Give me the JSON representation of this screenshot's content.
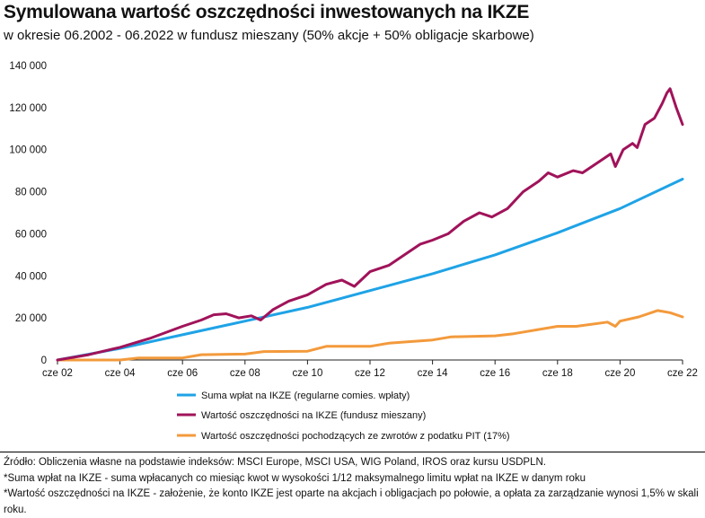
{
  "title": "Symulowana wartość oszczędności inwestowanych na IKZE",
  "subtitle": "w okresie 06.2002 - 06.2022 w fundusz mieszany (50% akcje + 50% obligacje skarbowe)",
  "colors": {
    "blue": "#1fa3e6",
    "purple": "#a0135a",
    "orange": "#f39a3c"
  },
  "chart_data": {
    "type": "line",
    "title": "Symulowana wartość oszczędności inwestowanych na IKZE",
    "ylim": [
      0,
      140000
    ],
    "xlim": [
      2002.4,
      2022.4
    ],
    "ytick_values": [
      0,
      20000,
      40000,
      60000,
      80000,
      100000,
      120000,
      140000
    ],
    "ytick_labels": [
      "0",
      "20 000",
      "40 000",
      "60 000",
      "80 000",
      "100 000",
      "120 000",
      "140 000"
    ],
    "xtick_values": [
      2002.4,
      2004.4,
      2006.4,
      2008.4,
      2010.4,
      2012.4,
      2014.4,
      2016.4,
      2018.4,
      2020.4,
      2022.4
    ],
    "xtick_labels": [
      "cze 02",
      "cze 04",
      "cze 06",
      "cze 08",
      "cze 10",
      "cze 12",
      "cze 14",
      "cze 16",
      "cze 18",
      "cze 20",
      "cze 22"
    ],
    "series": [
      {
        "name": "Suma wpłat na  IKZE (regularne comies. wpłaty)",
        "color": "#1fa3e6",
        "x": [
          2002.4,
          2004.4,
          2006.4,
          2008.4,
          2010.4,
          2012.4,
          2014.4,
          2016.4,
          2018.4,
          2020.4,
          2022.4
        ],
        "y": [
          0,
          5500,
          12000,
          18500,
          25000,
          33000,
          41000,
          50000,
          60500,
          72000,
          86000
        ]
      },
      {
        "name": "Wartość oszczędności na IKZE (fundusz mieszany)",
        "color": "#a0135a",
        "x": [
          2002.4,
          2003.4,
          2004.4,
          2005.4,
          2006.4,
          2007.0,
          2007.4,
          2007.8,
          2008.2,
          2008.6,
          2008.9,
          2009.3,
          2009.8,
          2010.4,
          2011.0,
          2011.5,
          2011.9,
          2012.4,
          2013.0,
          2013.5,
          2014.0,
          2014.4,
          2014.9,
          2015.4,
          2015.9,
          2016.3,
          2016.8,
          2017.3,
          2017.8,
          2018.1,
          2018.4,
          2018.9,
          2019.2,
          2019.6,
          2019.9,
          2020.1,
          2020.25,
          2020.5,
          2020.8,
          2020.95,
          2021.2,
          2021.5,
          2021.75,
          2021.9,
          2022.0,
          2022.2,
          2022.4
        ],
        "y": [
          0,
          2500,
          6000,
          10500,
          16000,
          19000,
          21500,
          22000,
          20000,
          21000,
          19000,
          24000,
          28000,
          31000,
          36000,
          38000,
          35000,
          42000,
          45000,
          50000,
          55000,
          57000,
          60000,
          66000,
          70000,
          68000,
          72000,
          80000,
          85000,
          89000,
          87000,
          90000,
          89000,
          93000,
          96000,
          98000,
          92000,
          100000,
          103000,
          101000,
          112000,
          115000,
          122000,
          127000,
          129000,
          120000,
          112000
        ]
      },
      {
        "name": "Wartość oszczędności pochodzących ze zwrotów z podatku PIT (17%)",
        "color": "#f39a3c",
        "x": [
          2002.4,
          2004.4,
          2005.0,
          2006.4,
          2007.0,
          2008.4,
          2009.0,
          2010.4,
          2011.0,
          2012.4,
          2013.0,
          2014.4,
          2015.0,
          2016.4,
          2017.0,
          2018.4,
          2019.0,
          2020.0,
          2020.25,
          2020.4,
          2021.0,
          2021.6,
          2022.0,
          2022.4
        ],
        "y": [
          0,
          0,
          1000,
          1000,
          2500,
          2800,
          4000,
          4200,
          6500,
          6500,
          8000,
          9500,
          11000,
          11500,
          12500,
          16000,
          16000,
          18000,
          16000,
          18500,
          20500,
          23500,
          22500,
          20500
        ]
      }
    ]
  },
  "source": {
    "line1": "Źródło: Obliczenia własne na podstawie indeksów: MSCI Europe, MSCI USA, WIG Poland, IROS oraz kursu USDPLN.",
    "line2": "*Suma wpłat na IKZE - suma wpłacanych co miesiąc kwot w wysokości 1/12 maksymalnego limitu wpłat na IKZE w danym roku",
    "line3": "*Wartość oszczędności na IKZE - założenie, że konto IKZE jest oparte na akcjach i obligacjach po połowie, a opłata za zarządzanie wynosi 1,5% w skali roku."
  }
}
